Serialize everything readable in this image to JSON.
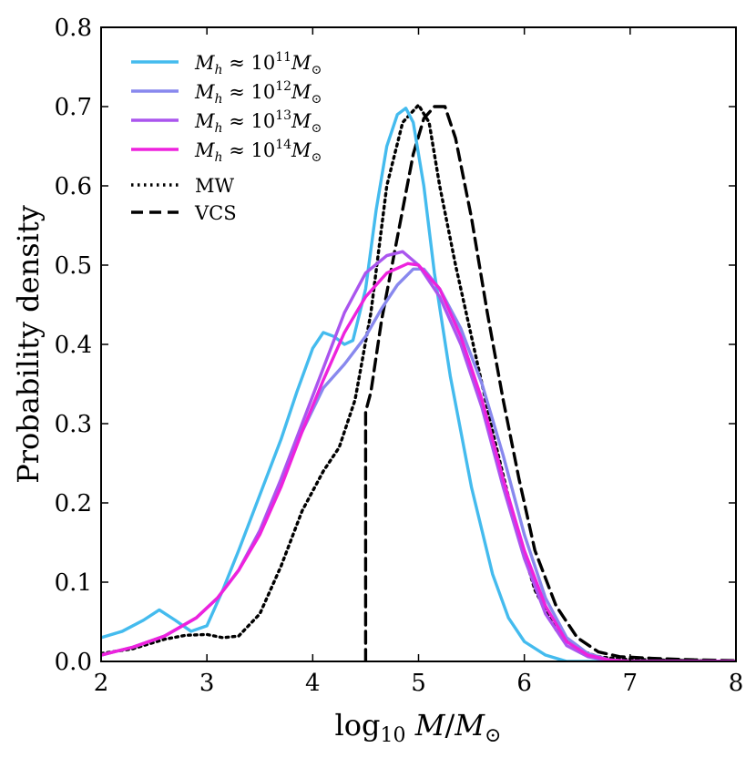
{
  "chart_data": {
    "type": "line",
    "xlabel": "log10 M/M⊙",
    "ylabel": "Probability density",
    "xlim": [
      2,
      8
    ],
    "ylim": [
      0,
      0.8
    ],
    "xticks": [
      {
        "value": 2,
        "label": "2"
      },
      {
        "value": 3,
        "label": "3"
      },
      {
        "value": 4,
        "label": "4"
      },
      {
        "value": 5,
        "label": "5"
      },
      {
        "value": 6,
        "label": "6"
      },
      {
        "value": 7,
        "label": "7"
      },
      {
        "value": 8,
        "label": "8"
      }
    ],
    "yticks": [
      {
        "value": 0.0,
        "label": "0.0"
      },
      {
        "value": 0.1,
        "label": "0.1"
      },
      {
        "value": 0.2,
        "label": "0.2"
      },
      {
        "value": 0.3,
        "label": "0.3"
      },
      {
        "value": 0.4,
        "label": "0.4"
      },
      {
        "value": 0.5,
        "label": "0.5"
      },
      {
        "value": 0.6,
        "label": "0.6"
      },
      {
        "value": 0.7,
        "label": "0.7"
      },
      {
        "value": 0.8,
        "label": "0.8"
      }
    ],
    "legend_position": "top-left",
    "series": [
      {
        "name": "Mh ≈ 10^11 M⊙",
        "legend": {
          "prefix": "M",
          "sub": "h",
          "mid": " ≈ 10",
          "sup": "11",
          "tail": "M",
          "tail_sub": "⊙"
        },
        "color": "#44bbee",
        "style": "solid",
        "points": [
          [
            2.0,
            0.03
          ],
          [
            2.2,
            0.038
          ],
          [
            2.4,
            0.052
          ],
          [
            2.55,
            0.065
          ],
          [
            2.7,
            0.052
          ],
          [
            2.85,
            0.038
          ],
          [
            3.0,
            0.045
          ],
          [
            3.15,
            0.09
          ],
          [
            3.3,
            0.14
          ],
          [
            3.5,
            0.21
          ],
          [
            3.7,
            0.28
          ],
          [
            3.85,
            0.34
          ],
          [
            4.0,
            0.395
          ],
          [
            4.1,
            0.415
          ],
          [
            4.2,
            0.41
          ],
          [
            4.3,
            0.4
          ],
          [
            4.38,
            0.405
          ],
          [
            4.5,
            0.47
          ],
          [
            4.6,
            0.57
          ],
          [
            4.7,
            0.65
          ],
          [
            4.8,
            0.69
          ],
          [
            4.88,
            0.698
          ],
          [
            4.95,
            0.68
          ],
          [
            5.05,
            0.6
          ],
          [
            5.15,
            0.49
          ],
          [
            5.3,
            0.36
          ],
          [
            5.5,
            0.22
          ],
          [
            5.7,
            0.11
          ],
          [
            5.85,
            0.055
          ],
          [
            6.0,
            0.025
          ],
          [
            6.2,
            0.008
          ],
          [
            6.4,
            0.0
          ],
          [
            8.0,
            0.0
          ]
        ]
      },
      {
        "name": "Mh ≈ 10^12 M⊙",
        "legend": {
          "prefix": "M",
          "sub": "h",
          "mid": " ≈ 10",
          "sup": "12",
          "tail": "M",
          "tail_sub": "⊙"
        },
        "color": "#8888ee",
        "style": "solid",
        "points": [
          [
            2.0,
            0.008
          ],
          [
            2.3,
            0.018
          ],
          [
            2.6,
            0.032
          ],
          [
            2.9,
            0.055
          ],
          [
            3.1,
            0.08
          ],
          [
            3.3,
            0.115
          ],
          [
            3.5,
            0.165
          ],
          [
            3.7,
            0.225
          ],
          [
            3.9,
            0.29
          ],
          [
            4.1,
            0.345
          ],
          [
            4.3,
            0.375
          ],
          [
            4.5,
            0.41
          ],
          [
            4.65,
            0.445
          ],
          [
            4.8,
            0.475
          ],
          [
            4.95,
            0.495
          ],
          [
            5.05,
            0.495
          ],
          [
            5.2,
            0.47
          ],
          [
            5.4,
            0.42
          ],
          [
            5.6,
            0.35
          ],
          [
            5.8,
            0.26
          ],
          [
            6.0,
            0.16
          ],
          [
            6.2,
            0.08
          ],
          [
            6.4,
            0.03
          ],
          [
            6.6,
            0.01
          ],
          [
            6.8,
            0.002
          ],
          [
            7.0,
            0.0
          ],
          [
            8.0,
            0.0
          ]
        ]
      },
      {
        "name": "Mh ≈ 10^13 M⊙",
        "legend": {
          "prefix": "M",
          "sub": "h",
          "mid": " ≈ 10",
          "sup": "13",
          "tail": "M",
          "tail_sub": "⊙"
        },
        "color": "#aa55ee",
        "style": "solid",
        "points": [
          [
            2.0,
            0.008
          ],
          [
            2.3,
            0.018
          ],
          [
            2.6,
            0.032
          ],
          [
            2.9,
            0.055
          ],
          [
            3.1,
            0.08
          ],
          [
            3.3,
            0.115
          ],
          [
            3.5,
            0.165
          ],
          [
            3.7,
            0.23
          ],
          [
            3.9,
            0.3
          ],
          [
            4.1,
            0.37
          ],
          [
            4.3,
            0.44
          ],
          [
            4.5,
            0.49
          ],
          [
            4.7,
            0.512
          ],
          [
            4.85,
            0.517
          ],
          [
            5.0,
            0.5
          ],
          [
            5.2,
            0.46
          ],
          [
            5.4,
            0.4
          ],
          [
            5.6,
            0.32
          ],
          [
            5.8,
            0.22
          ],
          [
            6.0,
            0.13
          ],
          [
            6.2,
            0.06
          ],
          [
            6.4,
            0.02
          ],
          [
            6.6,
            0.006
          ],
          [
            6.8,
            0.001
          ],
          [
            7.0,
            0.0
          ],
          [
            8.0,
            0.0
          ]
        ]
      },
      {
        "name": "Mh ≈ 10^14 M⊙",
        "legend": {
          "prefix": "M",
          "sub": "h",
          "mid": " ≈ 10",
          "sup": "14",
          "tail": "M",
          "tail_sub": "⊙"
        },
        "color": "#ee22dd",
        "style": "solid",
        "points": [
          [
            2.0,
            0.008
          ],
          [
            2.3,
            0.018
          ],
          [
            2.6,
            0.032
          ],
          [
            2.9,
            0.055
          ],
          [
            3.1,
            0.08
          ],
          [
            3.3,
            0.115
          ],
          [
            3.5,
            0.16
          ],
          [
            3.7,
            0.22
          ],
          [
            3.9,
            0.29
          ],
          [
            4.1,
            0.355
          ],
          [
            4.3,
            0.415
          ],
          [
            4.5,
            0.46
          ],
          [
            4.7,
            0.49
          ],
          [
            4.9,
            0.502
          ],
          [
            5.0,
            0.5
          ],
          [
            5.2,
            0.47
          ],
          [
            5.4,
            0.41
          ],
          [
            5.6,
            0.33
          ],
          [
            5.8,
            0.23
          ],
          [
            6.0,
            0.14
          ],
          [
            6.2,
            0.07
          ],
          [
            6.4,
            0.025
          ],
          [
            6.6,
            0.008
          ],
          [
            6.8,
            0.002
          ],
          [
            7.0,
            0.0
          ],
          [
            8.0,
            0.0
          ]
        ]
      },
      {
        "name": "MW",
        "legend": {
          "text": "MW"
        },
        "color": "#000000",
        "style": "dotted",
        "points": [
          [
            2.0,
            0.01
          ],
          [
            2.3,
            0.016
          ],
          [
            2.6,
            0.028
          ],
          [
            2.8,
            0.033
          ],
          [
            3.0,
            0.034
          ],
          [
            3.15,
            0.03
          ],
          [
            3.3,
            0.032
          ],
          [
            3.5,
            0.06
          ],
          [
            3.7,
            0.12
          ],
          [
            3.9,
            0.19
          ],
          [
            4.1,
            0.24
          ],
          [
            4.25,
            0.27
          ],
          [
            4.4,
            0.33
          ],
          [
            4.55,
            0.44
          ],
          [
            4.7,
            0.6
          ],
          [
            4.85,
            0.68
          ],
          [
            5.0,
            0.702
          ],
          [
            5.1,
            0.68
          ],
          [
            5.2,
            0.6
          ],
          [
            5.35,
            0.5
          ],
          [
            5.5,
            0.41
          ],
          [
            5.7,
            0.29
          ],
          [
            5.9,
            0.18
          ],
          [
            6.1,
            0.09
          ],
          [
            6.3,
            0.04
          ],
          [
            6.5,
            0.015
          ],
          [
            6.7,
            0.006
          ],
          [
            6.9,
            0.003
          ],
          [
            7.2,
            0.002
          ],
          [
            7.6,
            0.001
          ],
          [
            8.0,
            0.0
          ]
        ]
      },
      {
        "name": "VCS",
        "legend": {
          "text": "VCS"
        },
        "color": "#000000",
        "style": "dashed",
        "points": [
          [
            4.5,
            0.0
          ],
          [
            4.5,
            0.315
          ],
          [
            4.55,
            0.34
          ],
          [
            4.65,
            0.43
          ],
          [
            4.75,
            0.5
          ],
          [
            4.85,
            0.57
          ],
          [
            4.95,
            0.64
          ],
          [
            5.05,
            0.685
          ],
          [
            5.15,
            0.7
          ],
          [
            5.25,
            0.7
          ],
          [
            5.35,
            0.66
          ],
          [
            5.5,
            0.56
          ],
          [
            5.65,
            0.44
          ],
          [
            5.8,
            0.33
          ],
          [
            5.95,
            0.23
          ],
          [
            6.1,
            0.14
          ],
          [
            6.3,
            0.07
          ],
          [
            6.5,
            0.03
          ],
          [
            6.7,
            0.012
          ],
          [
            6.9,
            0.006
          ],
          [
            7.2,
            0.004
          ],
          [
            7.6,
            0.002
          ],
          [
            8.0,
            0.001
          ]
        ]
      }
    ]
  }
}
